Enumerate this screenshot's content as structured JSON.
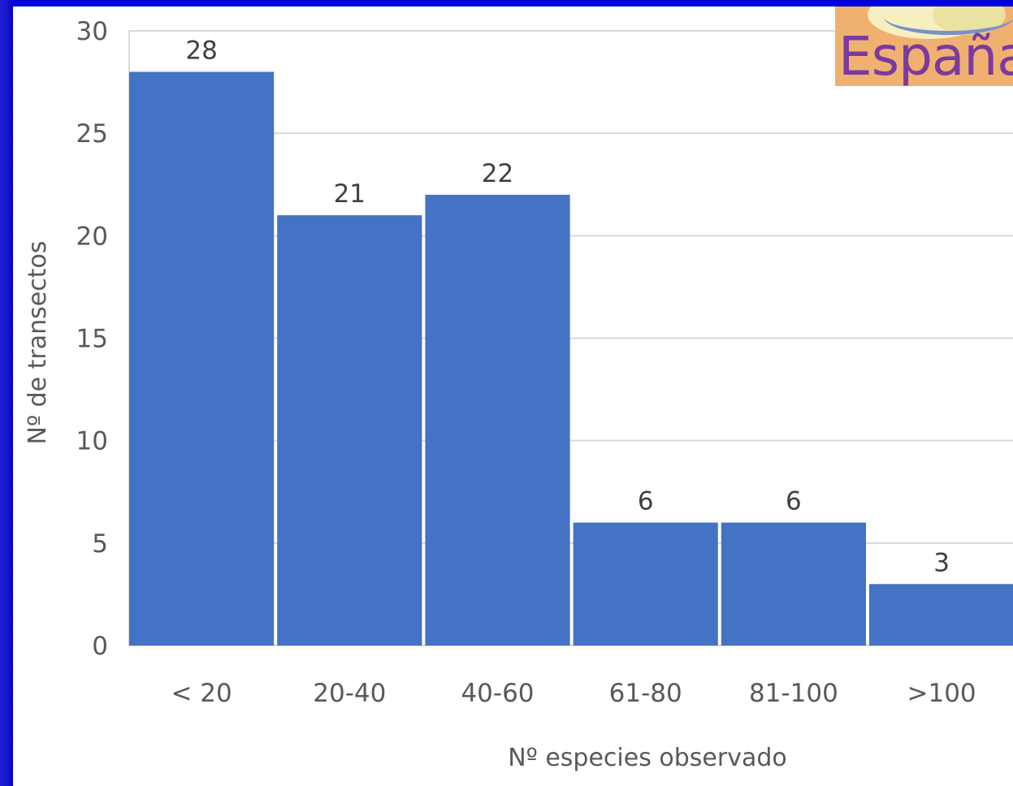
{
  "logo": {
    "text": "España"
  },
  "colors": {
    "bar": "#4472c4",
    "grid": "#d9d9d9",
    "frame": "#0000d8"
  },
  "chart_data": {
    "type": "bar",
    "categories": [
      "< 20",
      "20-40",
      "40-60",
      "61-80",
      "81-100",
      ">100"
    ],
    "values": [
      28,
      21,
      22,
      6,
      6,
      3
    ],
    "xlabel": "Nº especies observado",
    "ylabel": "Nº de transectos",
    "ylim": [
      0,
      30
    ],
    "yticks": [
      0,
      5,
      10,
      15,
      20,
      25,
      30
    ],
    "grid": true,
    "data_labels": true
  }
}
